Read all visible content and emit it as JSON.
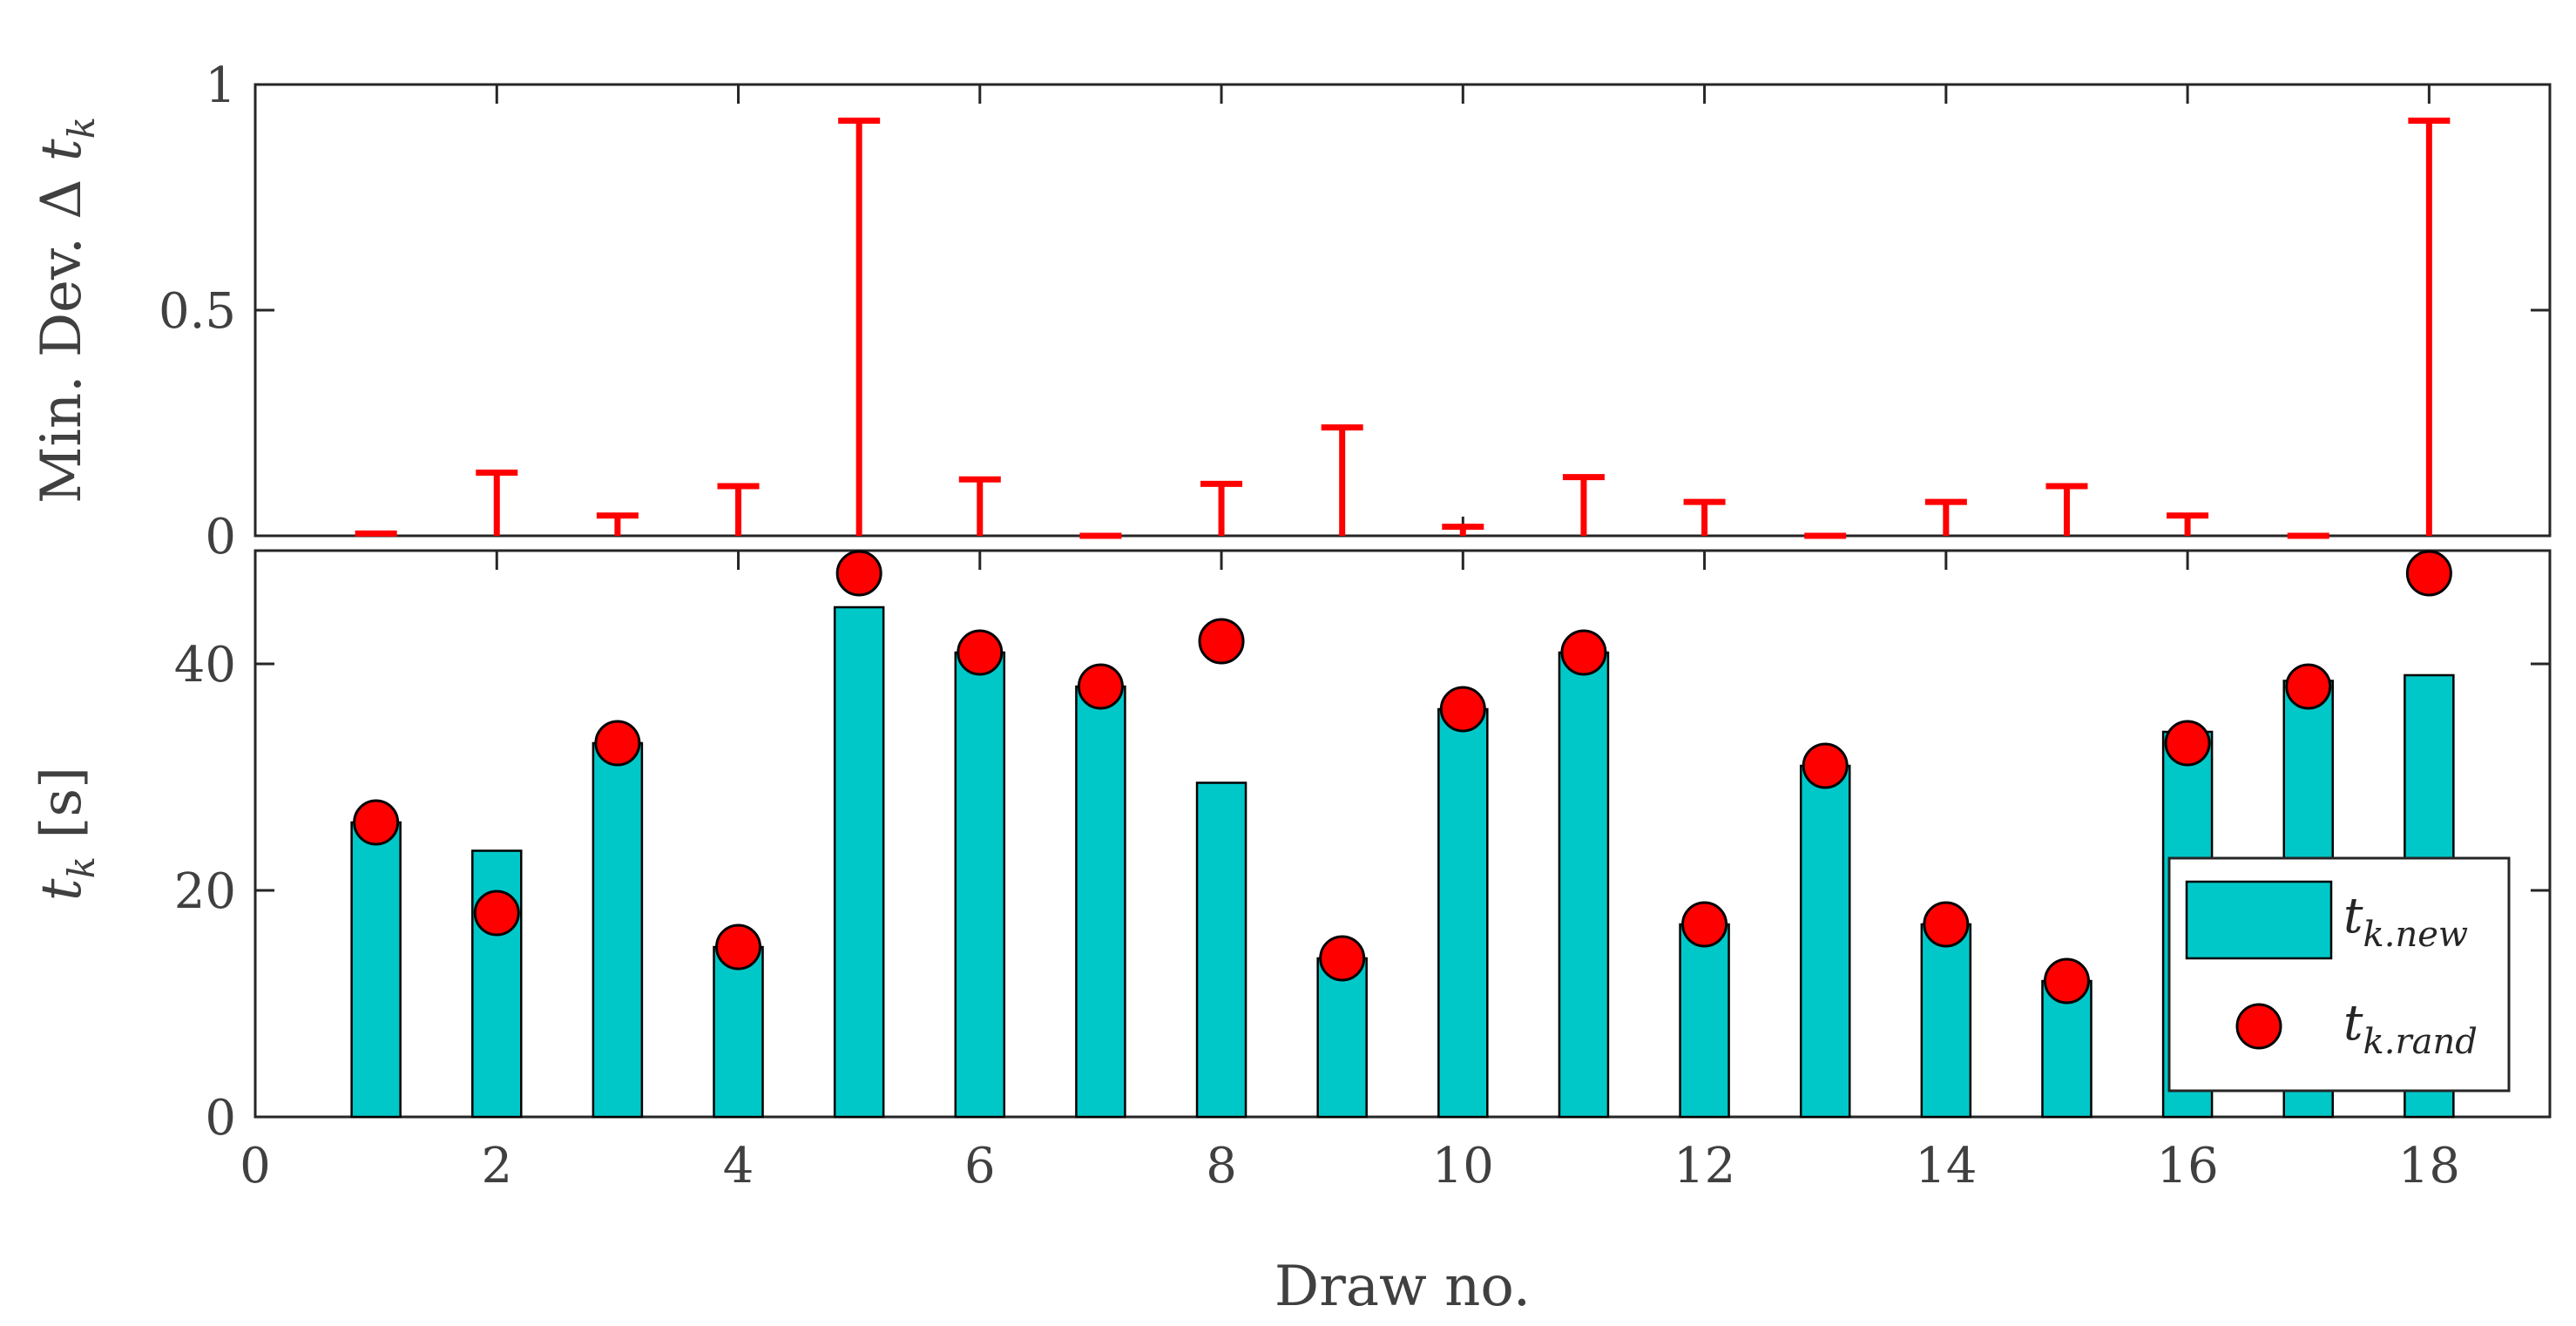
{
  "chart_data": [
    {
      "panel": "top",
      "type": "errorbar",
      "ylabel": {
        "text": "Min. Dev. Δ ",
        "var": "t",
        "sub": "k"
      },
      "ylim": [
        0,
        1
      ],
      "yticks": [
        0,
        0.5,
        1
      ],
      "ytick_labels": [
        "0",
        "0.5",
        "1"
      ],
      "color": "#ff0000",
      "x": [
        1,
        2,
        3,
        4,
        5,
        6,
        7,
        8,
        9,
        10,
        11,
        12,
        13,
        14,
        15,
        16,
        17,
        18
      ],
      "values": [
        0.005,
        0.14,
        0.045,
        0.11,
        0.92,
        0.125,
        0.0,
        0.115,
        0.24,
        0.02,
        0.13,
        0.075,
        0.0,
        0.075,
        0.11,
        0.045,
        0.0,
        0.92
      ]
    },
    {
      "panel": "bottom",
      "type": "bar",
      "xlabel": "Draw no.",
      "ylabel": {
        "var": "t",
        "sub": "k",
        "unit": " [s]"
      },
      "xlim": [
        0,
        19
      ],
      "ylim": [
        0,
        50
      ],
      "xticks": [
        0,
        2,
        4,
        6,
        8,
        10,
        12,
        14,
        16,
        18
      ],
      "xtick_labels": [
        "0",
        "2",
        "4",
        "6",
        "8",
        "10",
        "12",
        "14",
        "16",
        "18"
      ],
      "yticks": [
        0,
        20,
        40
      ],
      "ytick_labels": [
        "0",
        "20",
        "40"
      ],
      "x": [
        1,
        2,
        3,
        4,
        5,
        6,
        7,
        8,
        9,
        10,
        11,
        12,
        13,
        14,
        15,
        16,
        17,
        18
      ],
      "series": [
        {
          "name": "t_k.new",
          "legend_var": "t",
          "legend_sub": "k.new",
          "kind": "bar",
          "color": "#00c8c8",
          "values": [
            26,
            23.5,
            33,
            15,
            45,
            41,
            38,
            29.5,
            14,
            36,
            41,
            17,
            31,
            17,
            12,
            34,
            38.5,
            39
          ]
        },
        {
          "name": "t_k.rand",
          "legend_var": "t",
          "legend_sub": "k.rand",
          "kind": "marker",
          "color": "#ff0000",
          "values": [
            26,
            18,
            33,
            15,
            48,
            41,
            38,
            42,
            14,
            36,
            41,
            17,
            31,
            17,
            12,
            33,
            38,
            48
          ]
        }
      ],
      "legend_position": "lower-right"
    }
  ]
}
